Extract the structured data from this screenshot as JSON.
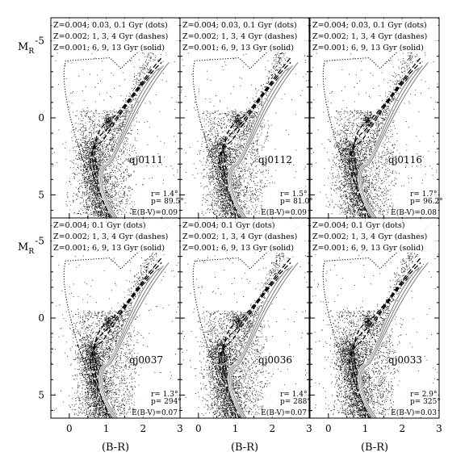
{
  "chart_data": [
    {
      "type": "scatter",
      "panel_id": "qj0111",
      "title": "qj0111",
      "legend": [
        "Z=0.004; 0.03, 0.1 Gyr (dots)",
        "Z=0.002; 1, 3, 4 Gyr (dashes)",
        "Z=0.001; 6, 9, 13 Gyr (solid)"
      ],
      "annotations": [
        "r= 1.4°",
        "p= 89.5°",
        "E(B-V)=0.09"
      ],
      "xlabel": "",
      "ylabel": "M_R",
      "xlim": [
        -0.5,
        3
      ],
      "ylim": [
        6.5,
        -6.5
      ],
      "ytick_labels": [
        "-5",
        "0",
        "5"
      ],
      "xtick_labels": [],
      "style": {
        "main_color": "#1a1a1a"
      }
    },
    {
      "type": "scatter",
      "panel_id": "qj0112",
      "title": "qj0112",
      "legend": [
        "Z=0.004; 0.03, 0.1 Gyr (dots)",
        "Z=0.002; 1, 3, 4 Gyr (dashes)",
        "Z=0.001; 6, 9, 13 Gyr (solid)"
      ],
      "annotations": [
        "r= 1.5°",
        "p= 81.0°",
        "E(B-V)=0.09"
      ],
      "xlabel": "",
      "ylabel": "",
      "xlim": [
        -0.5,
        3
      ],
      "ylim": [
        6.5,
        -6.5
      ],
      "ytick_labels": [],
      "xtick_labels": [],
      "style": {
        "main_color": "#1a1a1a"
      }
    },
    {
      "type": "scatter",
      "panel_id": "qj0116",
      "title": "qj0116",
      "legend": [
        "Z=0.004; 0.03, 0.1 Gyr (dots)",
        "Z=0.002; 1, 3, 4 Gyr (dashes)",
        "Z=0.001; 6, 9, 13 Gyr (solid)"
      ],
      "annotations": [
        "r= 1.7°",
        "p= 96.2°",
        "E(B-V)=0.08"
      ],
      "xlabel": "",
      "ylabel": "",
      "xlim": [
        -0.5,
        3
      ],
      "ylim": [
        6.5,
        -6.5
      ],
      "ytick_labels": [],
      "xtick_labels": [],
      "style": {
        "main_color": "#1a1a1a"
      }
    },
    {
      "type": "scatter",
      "panel_id": "qj0037",
      "title": "qj0037",
      "legend": [
        "Z=0.004; 0.1 Gyr (dots)",
        "Z=0.002; 1, 3, 4 Gyr (dashes)",
        "Z=0.001; 6, 9, 13 Gyr (solid)"
      ],
      "annotations": [
        "r= 1.3°",
        "p= 294°",
        "E(B-V)=0.07"
      ],
      "xlabel": "(B-R)",
      "ylabel": "M_R",
      "xlim": [
        -0.5,
        3
      ],
      "ylim": [
        6.5,
        -6.5
      ],
      "ytick_labels": [
        "-5",
        "0",
        "5"
      ],
      "xtick_labels": [
        "0",
        "1",
        "2",
        "3"
      ],
      "style": {
        "main_color": "#1a1a1a"
      }
    },
    {
      "type": "scatter",
      "panel_id": "qj0036",
      "title": "qj0036",
      "legend": [
        "Z=0.004; 0.1 Gyr (dots)",
        "Z=0.002; 1, 3, 4 Gyr (dashes)",
        "Z=0.001; 6, 9, 13 Gyr (solid)"
      ],
      "annotations": [
        "r= 1.4°",
        "p= 288°",
        "E(B-V)=0.07"
      ],
      "xlabel": "(B-R)",
      "ylabel": "",
      "xlim": [
        -0.5,
        3
      ],
      "ylim": [
        6.5,
        -6.5
      ],
      "ytick_labels": [],
      "xtick_labels": [
        "0",
        "1",
        "2",
        "3"
      ],
      "style": {
        "main_color": "#1a1a1a"
      }
    },
    {
      "type": "scatter",
      "panel_id": "qj0033",
      "title": "qj0033",
      "legend": [
        "Z=0.004; 0.1 Gyr (dots)",
        "Z=0.002; 1, 3, 4 Gyr (dashes)",
        "Z=0.001; 6, 9, 13 Gyr (solid)"
      ],
      "annotations": [
        "r= 2.9°",
        "p= 325°",
        "E(B-V)=0.03"
      ],
      "xlabel": "(B-R)",
      "ylabel": "",
      "xlim": [
        -0.5,
        3
      ],
      "ylim": [
        6.5,
        -6.5
      ],
      "ytick_labels": [],
      "xtick_labels": [
        "0",
        "1",
        "2",
        "3"
      ],
      "style": {
        "main_color": "#1a1a1a"
      }
    }
  ]
}
